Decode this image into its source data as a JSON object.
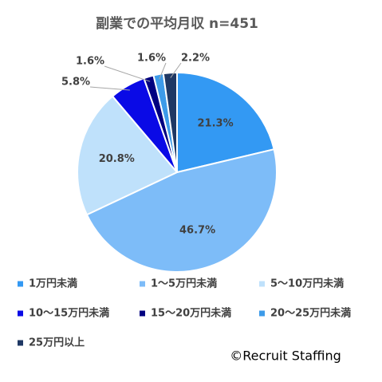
{
  "chart_data": {
    "type": "pie",
    "title": "副業での平均月収 n=451",
    "categories": [
      "1万円未満",
      "1～5万円未満",
      "5～10万円未満",
      "10～15万円未満",
      "15～20万円未満",
      "20～25万円未満",
      "25万円以上"
    ],
    "values": [
      21.3,
      46.7,
      20.8,
      5.8,
      1.6,
      1.6,
      2.2
    ],
    "value_labels": [
      "21.3%",
      "46.7%",
      "20.8%",
      "5.8%",
      "1.6%",
      "1.6%",
      "2.2%"
    ],
    "colors": [
      "#3399f3",
      "#7dbcf8",
      "#bfe1fb",
      "#0a0ae6",
      "#000080",
      "#3d9be9",
      "#1f3864"
    ],
    "legend": "bottom",
    "credit": "©Recruit Staffing"
  }
}
